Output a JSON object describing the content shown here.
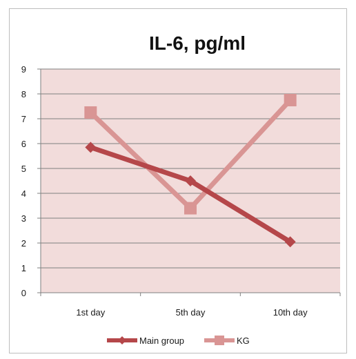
{
  "chart_data": {
    "type": "line",
    "title": "IL-6, pg/ml",
    "categories": [
      "1st day",
      "5th day",
      "10th day"
    ],
    "series": [
      {
        "name": "Main group",
        "values": [
          5.85,
          4.5,
          2.05
        ],
        "color": "#b5474a",
        "marker": "diamond"
      },
      {
        "name": "KG",
        "values": [
          7.25,
          3.4,
          7.75
        ],
        "color": "#d99594",
        "marker": "square"
      }
    ],
    "ylim": [
      0,
      9
    ],
    "yticks": [
      0,
      1,
      2,
      3,
      4,
      5,
      6,
      7,
      8,
      9
    ],
    "grid": true,
    "plot_background": "#f2dcdb",
    "legend_position": "bottom"
  }
}
